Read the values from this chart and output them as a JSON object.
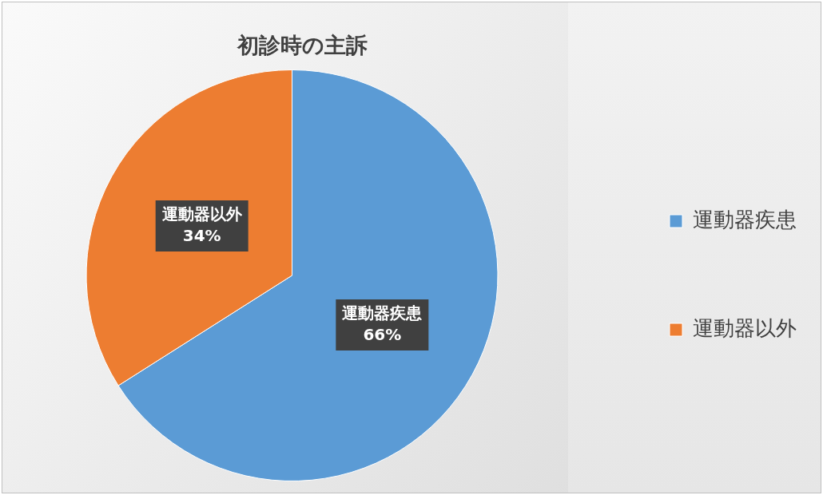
{
  "chart_data": {
    "type": "pie",
    "title": "初診時の主訴",
    "categories": [
      "運動器疾患",
      "運動器以外"
    ],
    "values": [
      66,
      34
    ],
    "value_labels": [
      "66%",
      "34%"
    ],
    "colors": [
      "#5b9bd5",
      "#ed7d31"
    ],
    "legend": "right"
  }
}
